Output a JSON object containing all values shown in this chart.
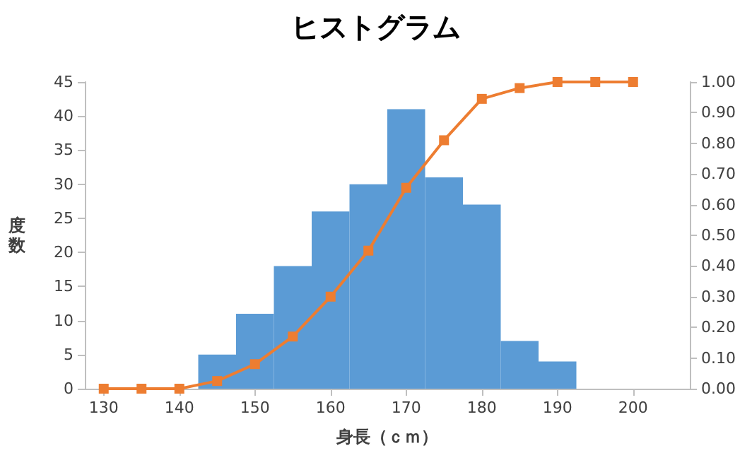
{
  "chart_data": {
    "type": "histogram",
    "title": "ヒストグラム",
    "xlabel": "身長（ｃｍ）",
    "ylabel": "度数",
    "bins": [
      142.5,
      147.5,
      152.5,
      157.5,
      162.5,
      167.5,
      172.5,
      177.5,
      182.5,
      187.5,
      192.5
    ],
    "values": [
      5,
      11,
      18,
      26,
      30,
      41,
      31,
      27,
      7,
      4
    ],
    "color": "#5b9bd5",
    "series": [
      {
        "type": "line",
        "axis": "y2",
        "color": "#ed7d31",
        "marker": "square",
        "x": [
          130,
          135,
          140,
          145,
          150,
          155,
          160,
          165,
          170,
          175,
          180,
          185,
          190,
          195,
          200
        ],
        "values": [
          0,
          0,
          0,
          0.025,
          0.08,
          0.17,
          0.3,
          0.45,
          0.655,
          0.81,
          0.945,
          0.98,
          1,
          1,
          1
        ]
      }
    ],
    "xlim": [
      127.5,
      207.5
    ],
    "xticks": [
      130,
      140,
      150,
      160,
      170,
      180,
      190,
      200
    ],
    "ylim": [
      0,
      45
    ],
    "yticks": [
      0,
      5,
      10,
      15,
      20,
      25,
      30,
      35,
      40,
      45
    ],
    "y2lim": [
      0,
      1
    ],
    "y2ticks": [
      {
        "value": 0,
        "label": "0.00"
      },
      {
        "value": 0.1,
        "label": "0.10"
      },
      {
        "value": 0.2,
        "label": "0.20"
      },
      {
        "value": 0.3,
        "label": "0.30"
      },
      {
        "value": 0.4,
        "label": "0.40"
      },
      {
        "value": 0.5,
        "label": "0.50"
      },
      {
        "value": 0.6,
        "label": "0.60"
      },
      {
        "value": 0.7,
        "label": "0.70"
      },
      {
        "value": 0.8,
        "label": "0.80"
      },
      {
        "value": 0.9,
        "label": "0.90"
      },
      {
        "value": 1,
        "label": "1.00"
      }
    ],
    "grid": false
  }
}
